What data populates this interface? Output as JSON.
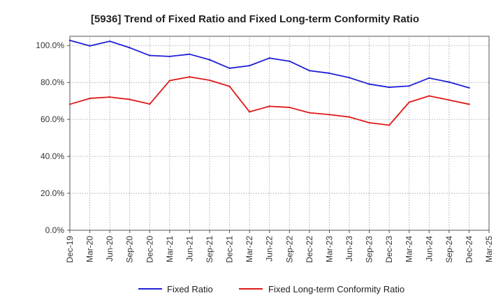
{
  "chart_data": {
    "type": "line",
    "title": "[5936]  Trend of Fixed Ratio and Fixed Long-term Conformity Ratio",
    "xlabel": "",
    "ylabel": "",
    "ylim": [
      0,
      105
    ],
    "grid": true,
    "legend_position": "bottom",
    "x_tick_labels": [
      "Dec-19",
      "Mar-20",
      "Jun-20",
      "Sep-20",
      "Dec-20",
      "Mar-21",
      "Jun-21",
      "Sep-21",
      "Dec-21",
      "Mar-22",
      "Jun-22",
      "Sep-22",
      "Dec-22",
      "Mar-23",
      "Jun-23",
      "Sep-23",
      "Dec-23",
      "Mar-24",
      "Jun-24",
      "Sep-24",
      "Dec-24",
      "Mar-25"
    ],
    "y_ticks": [
      0,
      20,
      40,
      60,
      80,
      100
    ],
    "y_tick_labels": [
      "0.0%",
      "20.0%",
      "40.0%",
      "60.0%",
      "80.0%",
      "100.0%"
    ],
    "categories": [
      "Dec-19",
      "Mar-20",
      "Jun-20",
      "Sep-20",
      "Dec-20",
      "Mar-21",
      "Jun-21",
      "Sep-21",
      "Dec-21",
      "Mar-22",
      "Jun-22",
      "Sep-22",
      "Dec-22",
      "Mar-23",
      "Jun-23",
      "Sep-23",
      "Dec-23",
      "Mar-24",
      "Jun-24",
      "Sep-24",
      "Dec-24"
    ],
    "series": [
      {
        "name": "Fixed Ratio",
        "color": "#1f1fd6",
        "values": [
          102.8,
          99.8,
          102.3,
          98.8,
          94.6,
          94.1,
          95.3,
          92.3,
          87.7,
          89.1,
          93.2,
          91.5,
          86.4,
          85.0,
          82.6,
          79.1,
          77.4,
          78.1,
          82.4,
          80.2,
          77.1
        ]
      },
      {
        "name": "Fixed Long-term Conformity Ratio",
        "color": "#e01818",
        "values": [
          68.2,
          71.4,
          72.1,
          70.8,
          68.3,
          81.0,
          83.0,
          81.2,
          77.9,
          64.1,
          67.1,
          66.5,
          63.6,
          62.6,
          61.3,
          58.2,
          56.9,
          69.3,
          72.7,
          70.5,
          68.2
        ]
      }
    ]
  }
}
